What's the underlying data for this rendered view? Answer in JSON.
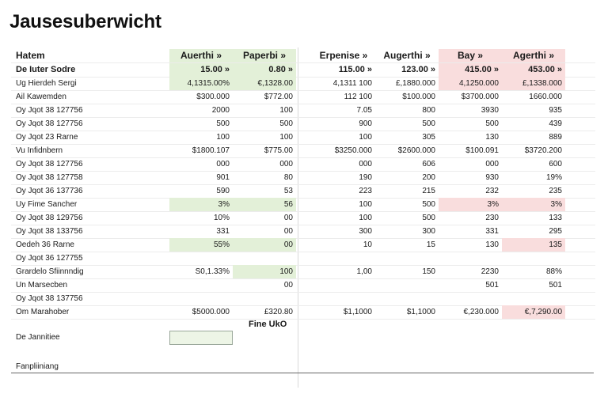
{
  "title": "Jausesuberwicht",
  "header": {
    "label": "Hatem",
    "cols": [
      "Auerthi »",
      "Paperbi »",
      "Erpenise »",
      "Augerthi »",
      "Bay »",
      "Agerthi »"
    ]
  },
  "rows": [
    {
      "label": "De Iuter Sodre",
      "cells": [
        "15.00 »",
        "0.80 »",
        "115.00 »",
        "123.00 »",
        "415.00 »",
        "453.00 »"
      ],
      "style": "bold",
      "hl": [
        "g",
        "g",
        "",
        "",
        "r",
        "r"
      ]
    },
    {
      "label": "Ug Hierdeh Sergi",
      "cells": [
        "4,1315.00%",
        "€,1328.00",
        "4,1311 100",
        "£,1880.000",
        "4,1250.000",
        "£,1338.000"
      ],
      "hl": [
        "g",
        "g",
        "",
        "",
        "r",
        "r"
      ]
    },
    {
      "label": "Ail Kawemden",
      "cells": [
        "$300.000",
        "$772.00",
        "112 100",
        "$100.000",
        "$3700.000",
        "1660.000"
      ],
      "hl": [
        "",
        "",
        "",
        "",
        "",
        ""
      ]
    },
    {
      "label": "Oy Jqot 38 127756",
      "cells": [
        "2000",
        "100",
        "7.05",
        "800",
        "3930",
        "935"
      ],
      "hl": [
        "",
        "",
        "",
        "",
        "",
        ""
      ]
    },
    {
      "label": "Oy Jqot 38 127756",
      "cells": [
        "500",
        "500",
        "900",
        "500",
        "500",
        "439"
      ],
      "hl": [
        "",
        "",
        "",
        "",
        "",
        ""
      ]
    },
    {
      "label": "Oy Jqot 23 Rarne",
      "cells": [
        "100",
        "100",
        "100",
        "305",
        "130",
        "889"
      ],
      "hl": [
        "",
        "",
        "",
        "",
        "",
        ""
      ]
    },
    {
      "label": "Vu Infidnbern",
      "cells": [
        "$1800.107",
        "$775.00",
        "$3250.000",
        "$2600.000",
        "$100.091",
        "$3720.200"
      ],
      "hl": [
        "",
        "",
        "",
        "",
        "",
        ""
      ]
    },
    {
      "label": "Oy Jqot 38 127756",
      "cells": [
        "000",
        "000",
        "000",
        "606",
        "000",
        "600"
      ],
      "hl": [
        "",
        "",
        "",
        "",
        "",
        ""
      ]
    },
    {
      "label": "Oy Jqot 38 127758",
      "cells": [
        "901",
        "80",
        "190",
        "200",
        "930",
        "19%"
      ],
      "hl": [
        "",
        "",
        "",
        "",
        "",
        ""
      ]
    },
    {
      "label": "Oy Jqot 36 137736",
      "cells": [
        "590",
        "53",
        "223",
        "215",
        "232",
        "235"
      ],
      "hl": [
        "",
        "",
        "",
        "",
        "",
        ""
      ]
    },
    {
      "label": "Uy Fime Sancher",
      "cells": [
        "3%",
        "56",
        "100",
        "500",
        "3%",
        "3%"
      ],
      "hl": [
        "g",
        "g",
        "",
        "",
        "r",
        "r"
      ]
    },
    {
      "label": "Oy Jqot 38 129756",
      "cells": [
        "10%",
        "00",
        "100",
        "500",
        "230",
        "133"
      ],
      "hl": [
        "",
        "",
        "",
        "",
        "",
        ""
      ]
    },
    {
      "label": "Oy Jqot 38 133756",
      "cells": [
        "331",
        "00",
        "300",
        "300",
        "331",
        "295"
      ],
      "hl": [
        "",
        "",
        "",
        "",
        "",
        ""
      ]
    },
    {
      "label": "Oedeh 36 Rarne",
      "cells": [
        "55%",
        "00",
        "10",
        "15",
        "130",
        "135"
      ],
      "hl": [
        "g",
        "g",
        "",
        "",
        "",
        "r"
      ]
    },
    {
      "label": "Oy Jqot 36 127755",
      "cells": [
        "",
        "",
        "",
        "",
        "",
        ""
      ],
      "hl": [
        "",
        "",
        "",
        "",
        "",
        ""
      ]
    },
    {
      "label": "Grardelo Sfiinnndig",
      "cells": [
        "S0,1.33%",
        "100",
        "1,00",
        "150",
        "2230",
        "88%"
      ],
      "hl": [
        "",
        "g",
        "",
        "",
        "",
        ""
      ]
    },
    {
      "label": "Un Marsecben",
      "cells": [
        "",
        "00",
        "",
        "",
        "501",
        "501"
      ],
      "hl": [
        "",
        "",
        "",
        "",
        "",
        ""
      ]
    },
    {
      "label": "Oy Jqot 38 137756",
      "cells": [
        "",
        "",
        "",
        "",
        "",
        ""
      ],
      "hl": [
        "",
        "",
        "",
        "",
        "",
        ""
      ]
    },
    {
      "label": "Om Marahober",
      "cells": [
        "$5000.000",
        "£320.80",
        "$1,1000",
        "$1,1000",
        "€,230.000",
        "€,7,290.00"
      ],
      "hl": [
        "",
        "",
        "",
        "",
        "",
        "r"
      ]
    }
  ],
  "fine_label": "Fine UkO",
  "note_label": "De Jannitiee",
  "footer_label": "Fanpliiniang"
}
